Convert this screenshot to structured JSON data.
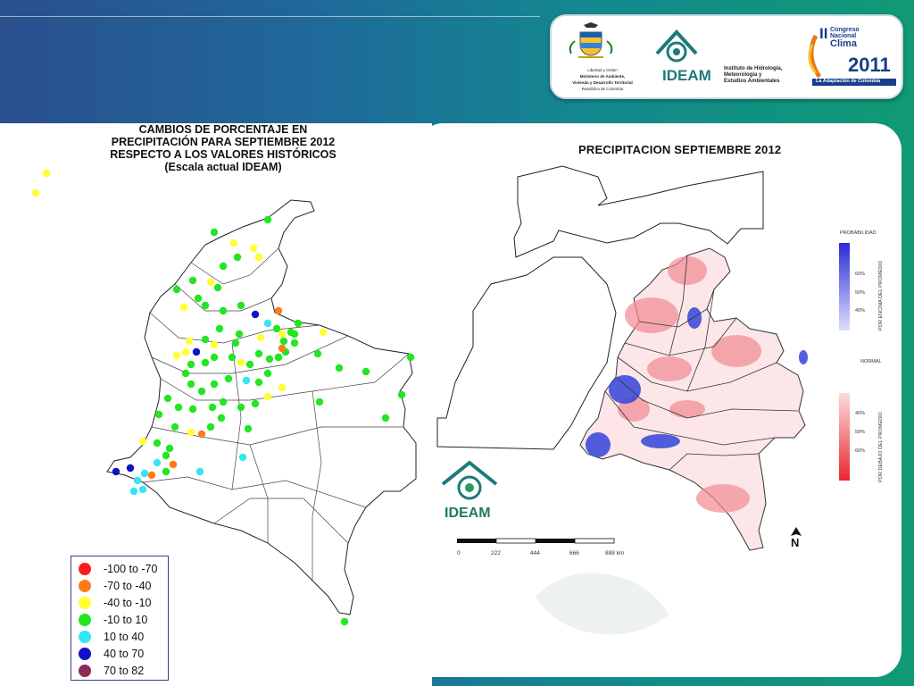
{
  "header": {
    "logos": {
      "colombia_caption": [
        "Libertad y Orden",
        "Ministerio de Ambiente,",
        "Vivienda y Desarrollo Territorial",
        "República de Colombia"
      ],
      "ideam_name": "IDEAM",
      "ideam_caption": [
        "Instituto de Hidrología,",
        "Meteorología y",
        "Estudios Ambientales"
      ],
      "congress_label": [
        "Congreso",
        "Nacional",
        "Clima"
      ],
      "congress_roman": "II",
      "congress_year": "2011",
      "congress_banner": "La Adaptación de Colombia"
    }
  },
  "left_map": {
    "title_lines": [
      "CAMBIOS DE PORCENTAJE EN",
      "PRECIPITACIÓN PARA SEPTIEMBRE 2012",
      "RESPECTO A LOS VALORES HISTÓRICOS",
      "(Escala actual IDEAM)"
    ],
    "legend": [
      {
        "label": "-100  to  -70",
        "color": "#ff1a1a"
      },
      {
        "label": "-70  to  -40",
        "color": "#ff7a1a"
      },
      {
        "label": "-40  to  -10",
        "color": "#ffff33"
      },
      {
        "label": "-10  to  10",
        "color": "#22e622"
      },
      {
        "label": "10  to  40",
        "color": "#33e6f0"
      },
      {
        "label": "40  to  70",
        "color": "#1010c8"
      },
      {
        "label": "70  to  82",
        "color": "#8c2a5a"
      }
    ]
  },
  "right_map": {
    "title": "PRECIPITACION  SEPTIEMBRE 2012",
    "colorbar_top": {
      "heading": "PROBABILIDAD",
      "side_label": "POR ENCIMA DEL PROMEDIO",
      "ticks": [
        "60%",
        "50%",
        "40%"
      ],
      "color": "#2b2bd6"
    },
    "colorbar_bottom": {
      "heading": "NORMAL",
      "side_label": "POR DEBAJO DEL PROMEDIO",
      "ticks": [
        "40%",
        "50%",
        "60%"
      ],
      "color": "#e8282e"
    },
    "scale_bar": [
      "0",
      "222",
      "444",
      "666",
      "888 km"
    ],
    "logo_name": "IDEAM",
    "north_label": "N"
  }
}
